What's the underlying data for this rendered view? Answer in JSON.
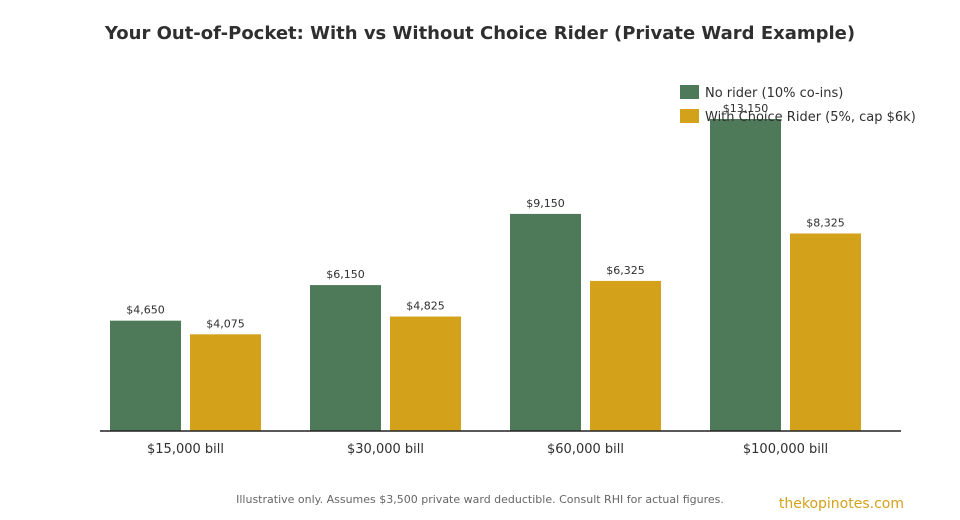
{
  "chart_data": {
    "type": "bar",
    "title": "Your Out-of-Pocket: With vs Without Choice Rider (Private Ward Example)",
    "categories": [
      "$15,000 bill",
      "$30,000 bill",
      "$60,000 bill",
      "$100,000 bill"
    ],
    "series": [
      {
        "name": "No rider (10% co-ins)",
        "color": "#4f7a5a",
        "values": [
          4650,
          6150,
          9150,
          13150
        ],
        "labels": [
          "$4,650",
          "$6,150",
          "$9,150",
          "$13,150"
        ]
      },
      {
        "name": "With Choice Rider (5%, cap $6k)",
        "color": "#d4a11a",
        "values": [
          4075,
          4825,
          6325,
          8325
        ],
        "labels": [
          "$4,075",
          "$4,825",
          "$6,325",
          "$8,325"
        ]
      }
    ],
    "ylim": [
      0,
      13150
    ],
    "grid": false,
    "legend": "top-right"
  },
  "footnote": "Illustrative only. Assumes $3,500 private ward deductible. Consult RHI for actual figures.",
  "brand": {
    "text": "thekopinotes.com",
    "color": "#d4a11a"
  }
}
